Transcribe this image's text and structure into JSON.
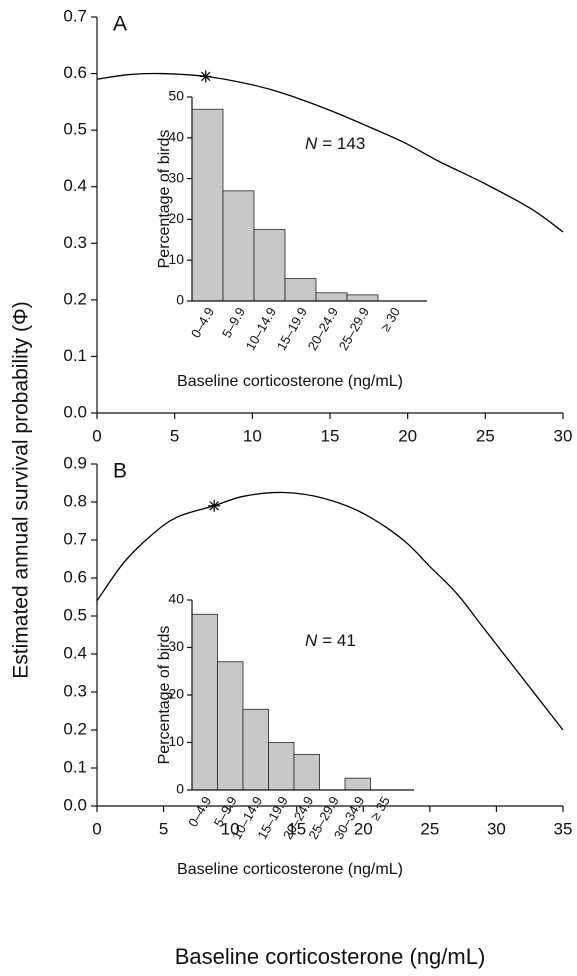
{
  "labels": {
    "ylabel": "Estimated annual survival probability (Φ)",
    "xlabel": "Baseline corticosterone (ng/mL)"
  },
  "chart_data": [
    {
      "type": "line",
      "panel": "A",
      "color": "#000000",
      "x": [
        0,
        2,
        4,
        7,
        10,
        12,
        15,
        18,
        20,
        22,
        25,
        28,
        30
      ],
      "values": [
        0.59,
        0.598,
        0.6,
        0.595,
        0.58,
        0.565,
        0.535,
        0.5,
        0.475,
        0.445,
        0.405,
        0.36,
        0.32
      ],
      "marker": {
        "x": 7,
        "y": 0.595
      },
      "xlim": [
        0,
        30
      ],
      "xticks": [
        0,
        5,
        10,
        15,
        20,
        25,
        30
      ],
      "ylim": [
        0,
        0.7
      ],
      "yticks": [
        {
          "value": 0,
          "label": "0.0"
        },
        0.1,
        0.2,
        0.3,
        0.4,
        0.5,
        0.6,
        0.7
      ],
      "inset": {
        "type": "bar",
        "color": "#c8c8c8",
        "categories": [
          "0–4.9",
          "5–9.9",
          "10–14.9",
          "15–19.9",
          "20–24.9",
          "25–29.9",
          "≥ 30"
        ],
        "values": [
          47,
          27,
          17.5,
          5.5,
          2,
          1.5,
          0
        ],
        "ylim": [
          0,
          50
        ],
        "yticks": [
          0,
          10,
          20,
          30,
          40,
          50
        ],
        "ylabel": "Percentage of birds",
        "xlabel": "Baseline corticosterone (ng/mL)",
        "annotation_var": "N",
        "annotation": "= 143"
      }
    },
    {
      "type": "line",
      "panel": "B",
      "color": "#000000",
      "x": [
        0,
        2,
        4,
        6,
        8.8,
        11,
        14,
        17,
        20,
        23,
        25,
        27,
        29,
        31,
        33,
        35
      ],
      "values": [
        0.54,
        0.64,
        0.71,
        0.76,
        0.79,
        0.815,
        0.825,
        0.81,
        0.77,
        0.7,
        0.63,
        0.56,
        0.47,
        0.38,
        0.29,
        0.2
      ],
      "marker": {
        "x": 8.8,
        "y": 0.79
      },
      "xlim": [
        0,
        35
      ],
      "xticks": [
        0,
        5,
        10,
        15,
        20,
        25,
        30,
        35
      ],
      "ylim": [
        0,
        0.9
      ],
      "yticks": [
        {
          "value": 0,
          "label": "0.0"
        },
        0.1,
        0.2,
        0.3,
        0.4,
        0.5,
        0.6,
        0.7,
        0.8,
        0.9
      ],
      "inset": {
        "type": "bar",
        "color": "#c8c8c8",
        "categories": [
          "0–4.9",
          "5–9.9",
          "10–14.9",
          "15–19.9",
          "20–24.9",
          "25–29.9",
          "30–34.9",
          "≥ 35"
        ],
        "values": [
          37,
          27,
          17,
          10,
          7.5,
          0,
          2.5,
          0
        ],
        "ylim": [
          0,
          40
        ],
        "yticks": [
          0,
          10,
          20,
          30,
          40
        ],
        "ylabel": "Percentage of birds",
        "xlabel": "Baseline corticosterone (ng/mL)",
        "annotation_var": "N",
        "annotation": "= 41"
      }
    }
  ]
}
